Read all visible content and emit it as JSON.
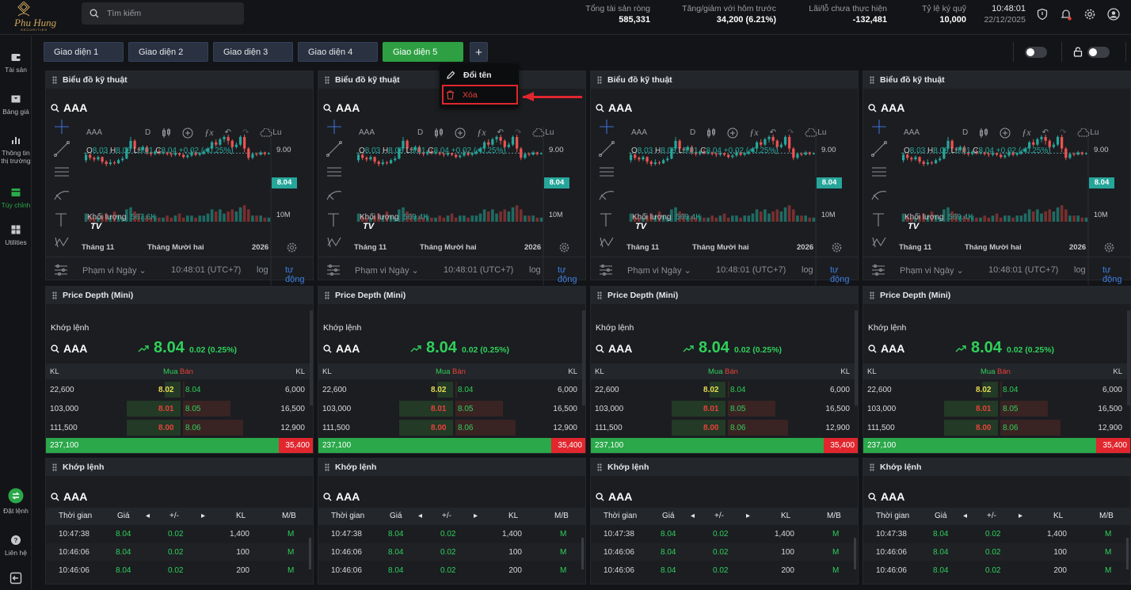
{
  "brand": {
    "name": "Phu Hung",
    "sub": "SECURITIES"
  },
  "search": {
    "placeholder": "Tìm kiếm"
  },
  "stats": [
    {
      "label": "Tổng tài sản ròng",
      "value": "585,331",
      "color": "#ffffff"
    },
    {
      "label": "Tăng/giảm với hôm trước",
      "value": "34,200 (6.21%)",
      "color": "#2fd05a"
    },
    {
      "label": "Lãi/lỗ chưa thực hiện",
      "value": "-132,481",
      "color": "#e8413b"
    },
    {
      "label": "Tỷ lệ ký quỹ",
      "value": "10,000",
      "color": "#ffffff"
    }
  ],
  "clock": {
    "time": "10:48:01",
    "date": "22/12/2025"
  },
  "sidebar": [
    {
      "label": "Tài sản",
      "icon": "wallet-icon"
    },
    {
      "label": "Bảng giá",
      "icon": "price-board-icon"
    },
    {
      "label": "Thông tin thị trường",
      "icon": "bar-chart-icon"
    },
    {
      "label": "Tùy chỉnh",
      "icon": "custom-layout-icon",
      "active": true
    },
    {
      "label": "Utilities",
      "icon": "grid-icon"
    },
    {
      "label": "Đặt lệnh",
      "icon": "order-icon"
    },
    {
      "label": "Liên hệ",
      "icon": "help-icon"
    }
  ],
  "tabs": [
    "Giao diện 1",
    "Giao diện 2",
    "Giao diện 3",
    "Giao diện 4",
    "Giao diện 5"
  ],
  "active_tab": 4,
  "context_menu": {
    "rename": "Đổi tên",
    "delete": "Xóa"
  },
  "chart_panel": {
    "title": "Biểu đồ kỹ thuật",
    "symbol": "AAA",
    "interval": "D",
    "lu": "Lu",
    "ohlc": {
      "o": "8.03",
      "h": "8.08",
      "l": "8.01",
      "c": "8.04",
      "chg": "+0.02 (+0.25%)"
    },
    "price_top": "9.00",
    "price_last": "8.04",
    "vol_axis": "10M",
    "x_labels": [
      "Tháng 11",
      "Tháng Mười hai",
      "2026"
    ],
    "range": "Phạm vi Ngày",
    "time": "10:48:01 (UTC+7)",
    "log": "log",
    "auto": "tự động",
    "volume_label": "Khối lượng"
  },
  "volumes": [
    "567.6K",
    "569.4K",
    "569.4K",
    "569.4K"
  ],
  "depth_panel": {
    "title": "Price Depth (Mini)",
    "subtitle": "Khớp lệnh",
    "symbol": "AAA",
    "price": "8.04",
    "change": "0.02 (0.25%)",
    "headers": {
      "kl_left": "KL",
      "buy": "Mua",
      "sell": "Bán",
      "kl_right": "KL"
    },
    "rows": [
      {
        "bid_vol": "22,600",
        "bid": "8.02",
        "ask": "8.04",
        "ask_vol": "6,000"
      },
      {
        "bid_vol": "103,000",
        "bid": "8.01",
        "ask": "8.05",
        "ask_vol": "16,500"
      },
      {
        "bid_vol": "111,500",
        "bid": "8.00",
        "ask": "8.06",
        "ask_vol": "12,900"
      }
    ],
    "total_buy": "237,100",
    "total_sell": "35,400"
  },
  "trades_panel": {
    "title": "Khớp lệnh",
    "symbol": "AAA",
    "headers": [
      "Thời gian",
      "Giá",
      "+/-",
      "KL",
      "M/B"
    ],
    "rows": [
      {
        "time": "10:47:38",
        "price": "8.04",
        "chg": "0.02",
        "vol": "1,400",
        "side": "M"
      },
      {
        "time": "10:46:06",
        "price": "8.04",
        "chg": "0.02",
        "vol": "100",
        "side": "M"
      },
      {
        "time": "10:46:06",
        "price": "8.04",
        "chg": "0.02",
        "vol": "200",
        "side": "M"
      }
    ]
  }
}
